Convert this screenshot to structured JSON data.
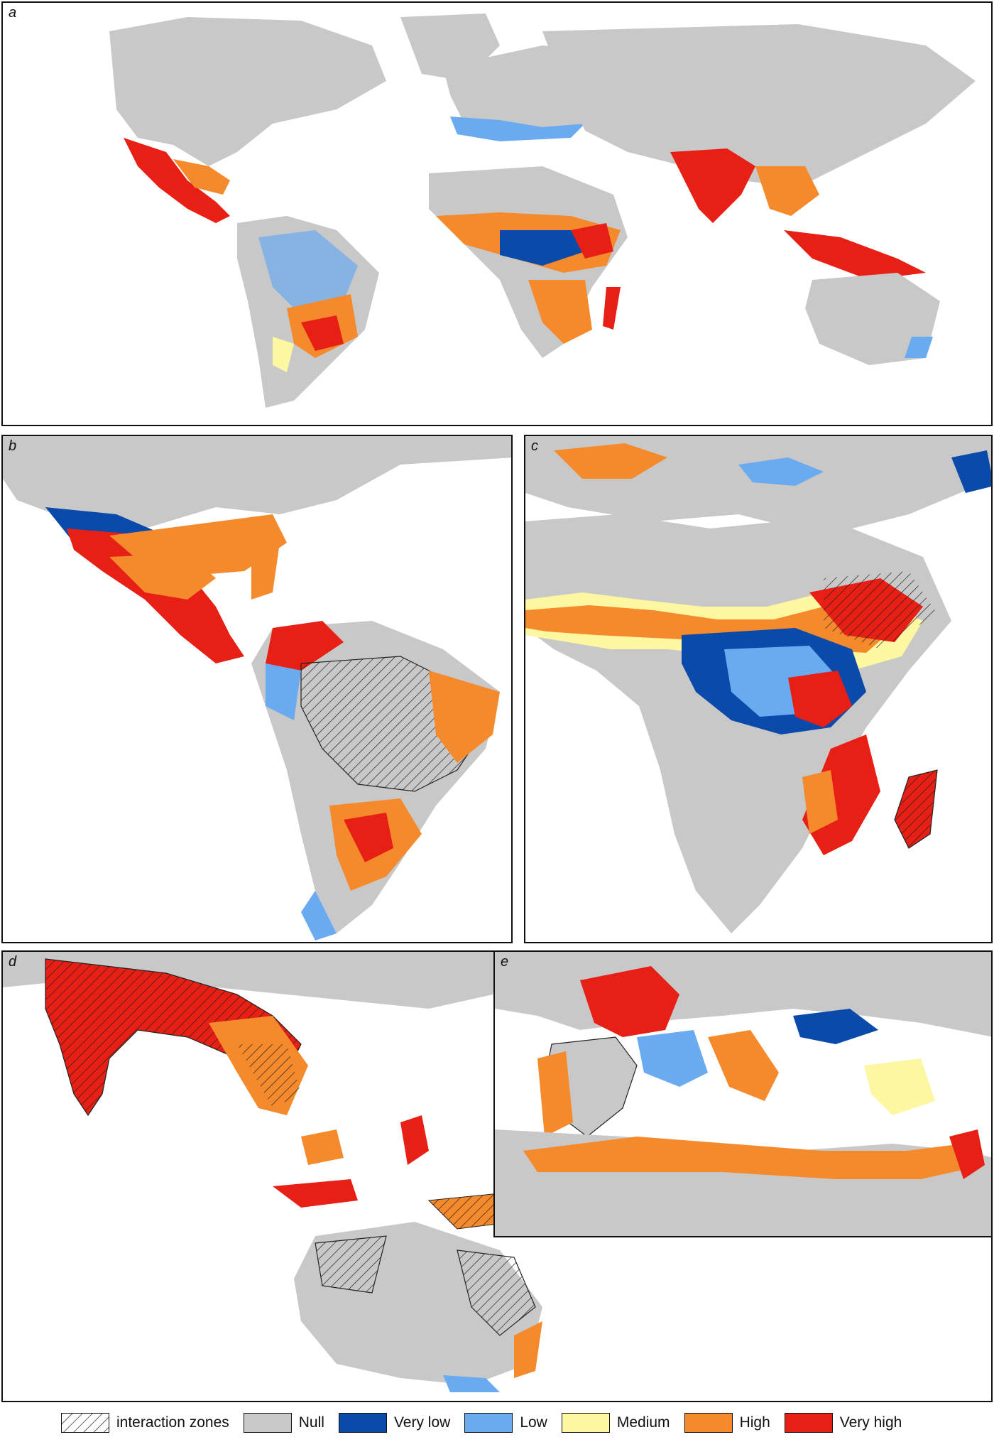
{
  "panels": {
    "a": {
      "label": "a"
    },
    "b": {
      "label": "b"
    },
    "c": {
      "label": "c"
    },
    "d": {
      "label": "d"
    },
    "e": {
      "label": "e"
    }
  },
  "legend": {
    "interaction": {
      "label": "interaction zones"
    },
    "null": {
      "label": "Null",
      "color": "#c8c8c8"
    },
    "very_low": {
      "label": "Very low",
      "color": "#0a4aaa"
    },
    "low": {
      "label": "Low",
      "color": "#6aaaf0"
    },
    "medium": {
      "label": "Medium",
      "color": "#fcf7a0"
    },
    "high": {
      "label": "High",
      "color": "#f58a2d"
    },
    "very_high": {
      "label": "Very high",
      "color": "#e81f15"
    }
  }
}
